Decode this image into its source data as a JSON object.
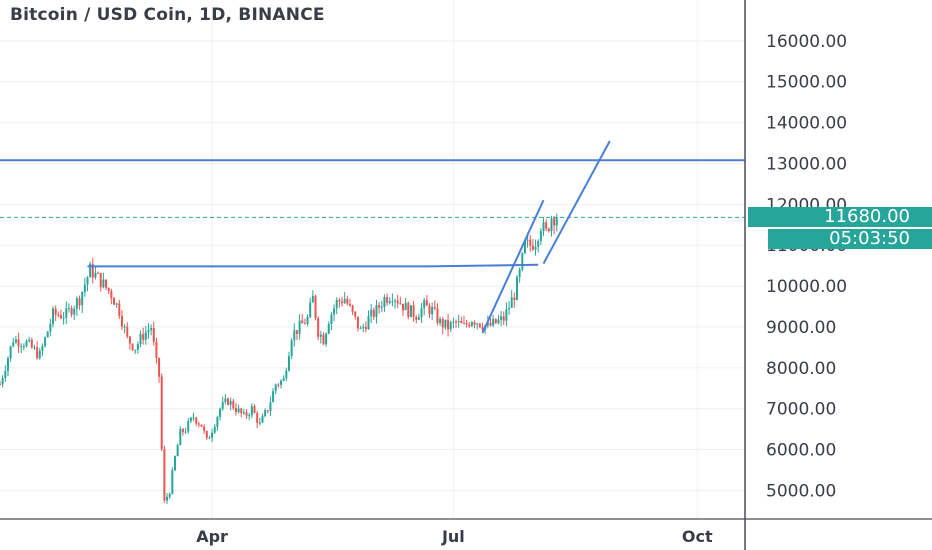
{
  "header": {
    "title": "Bitcoin / USD Coin, 1D, BINANCE"
  },
  "price_badge": {
    "price": "11680.00",
    "countdown": "05:03:50",
    "color": "#26a69a"
  },
  "colors": {
    "up": "#26a69a",
    "down": "#ef5350",
    "drawing": "#4a7fd8",
    "grid": "#eef0f3",
    "axis_text": "#3a3d48"
  },
  "chart_data": {
    "type": "candlestick",
    "title": "Bitcoin / USD Coin, 1D, BINANCE",
    "x_ticks": [
      {
        "label": "Apr",
        "day": 60
      },
      {
        "label": "Jul",
        "day": 151
      },
      {
        "label": "Oct",
        "day": 243
      }
    ],
    "y_ticks": [
      5000,
      6000,
      7000,
      8000,
      9000,
      10000,
      11000,
      12000,
      13000,
      14000,
      15000,
      16000
    ],
    "y_tick_labels": [
      "5000.00",
      "6000.00",
      "7000.00",
      "8000.00",
      "9000.00",
      "10000.00",
      "11000.00",
      "12000.00",
      "13000.00",
      "14000.00",
      "15000.00",
      "16000.00"
    ],
    "ylim": [
      4300,
      17000
    ],
    "xlim_days": [
      -20,
      261
    ],
    "last_price": 11680,
    "trendlines": [
      {
        "points": [
          [
            -20,
            13080
          ],
          [
            261,
            13080
          ]
        ]
      },
      {
        "points": [
          [
            13,
            10480
          ],
          [
            141,
            10480
          ],
          [
            183,
            10520
          ]
        ]
      },
      {
        "points": [
          [
            162,
            8850
          ],
          [
            185,
            12100
          ]
        ]
      },
      {
        "points": [
          [
            185,
            10550
          ],
          [
            210,
            13550
          ]
        ]
      }
    ],
    "key_points": [
      [
        -20,
        7600
      ],
      [
        -15,
        8700
      ],
      [
        -10,
        8600
      ],
      [
        -5,
        8300
      ],
      [
        0,
        9300
      ],
      [
        5,
        9300
      ],
      [
        10,
        9700
      ],
      [
        14,
        10400
      ],
      [
        17,
        10200
      ],
      [
        22,
        9800
      ],
      [
        25,
        9400
      ],
      [
        28,
        8700
      ],
      [
        31,
        8500
      ],
      [
        34,
        8800
      ],
      [
        37,
        9000
      ],
      [
        39,
        8100
      ],
      [
        40,
        7800
      ],
      [
        41,
        6000
      ],
      [
        42,
        4700
      ],
      [
        44,
        5000
      ],
      [
        46,
        5800
      ],
      [
        48,
        6400
      ],
      [
        50,
        6500
      ],
      [
        53,
        6800
      ],
      [
        56,
        6600
      ],
      [
        58,
        6200
      ],
      [
        60,
        6500
      ],
      [
        63,
        7000
      ],
      [
        66,
        7200
      ],
      [
        69,
        7000
      ],
      [
        72,
        6800
      ],
      [
        75,
        7000
      ],
      [
        78,
        6600
      ],
      [
        81,
        7000
      ],
      [
        84,
        7600
      ],
      [
        87,
        7700
      ],
      [
        90,
        8800
      ],
      [
        93,
        9000
      ],
      [
        96,
        9200
      ],
      [
        98,
        9700
      ],
      [
        100,
        8900
      ],
      [
        102,
        8700
      ],
      [
        104,
        9200
      ],
      [
        107,
        9600
      ],
      [
        110,
        9700
      ],
      [
        113,
        9300
      ],
      [
        116,
        8900
      ],
      [
        119,
        9200
      ],
      [
        122,
        9400
      ],
      [
        125,
        9700
      ],
      [
        128,
        9800
      ],
      [
        131,
        9600
      ],
      [
        134,
        9400
      ],
      [
        137,
        9300
      ],
      [
        140,
        9500
      ],
      [
        143,
        9400
      ],
      [
        146,
        9100
      ],
      [
        149,
        9000
      ],
      [
        152,
        9100
      ],
      [
        155,
        9000
      ],
      [
        158,
        9200
      ],
      [
        161,
        9100
      ],
      [
        164,
        9000
      ],
      [
        167,
        9100
      ],
      [
        170,
        9200
      ],
      [
        172,
        9500
      ],
      [
        174,
        9800
      ],
      [
        176,
        10300
      ],
      [
        178,
        11000
      ],
      [
        180,
        11000
      ],
      [
        182,
        11100
      ],
      [
        184,
        11500
      ],
      [
        186,
        11300
      ],
      [
        188,
        11700
      ],
      [
        190,
        11680
      ]
    ]
  }
}
